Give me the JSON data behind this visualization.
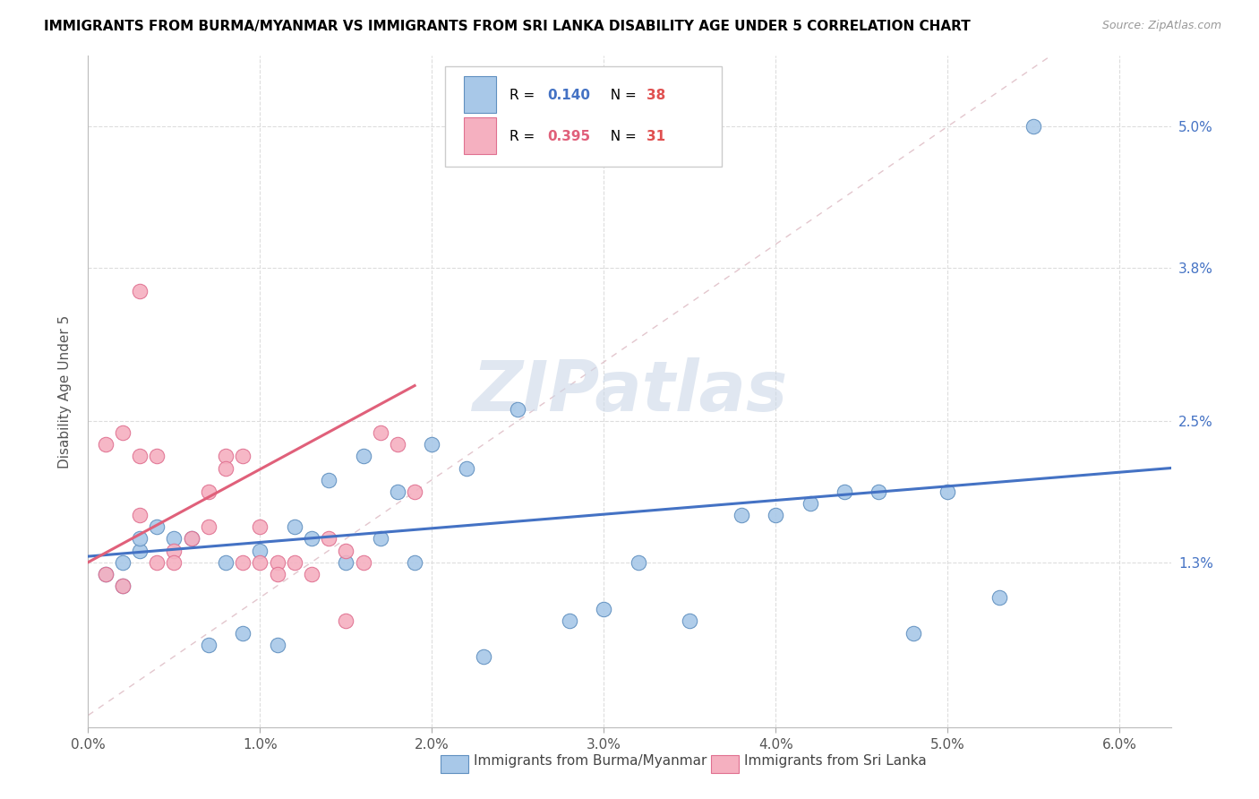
{
  "title": "IMMIGRANTS FROM BURMA/MYANMAR VS IMMIGRANTS FROM SRI LANKA DISABILITY AGE UNDER 5 CORRELATION CHART",
  "source": "Source: ZipAtlas.com",
  "ylabel": "Disability Age Under 5",
  "xlim": [
    0.0,
    0.063
  ],
  "ylim": [
    -0.001,
    0.056
  ],
  "xticks": [
    0.0,
    0.01,
    0.02,
    0.03,
    0.04,
    0.05,
    0.06
  ],
  "xticklabels": [
    "0.0%",
    "1.0%",
    "2.0%",
    "3.0%",
    "4.0%",
    "5.0%",
    "6.0%"
  ],
  "yticks": [
    0.013,
    0.025,
    0.038,
    0.05
  ],
  "yticklabels": [
    "1.3%",
    "2.5%",
    "3.8%",
    "5.0%"
  ],
  "blue_color": "#a8c8e8",
  "pink_color": "#f5b0c0",
  "blue_edge_color": "#6090c0",
  "pink_edge_color": "#e07090",
  "blue_line_color": "#4472c4",
  "pink_line_color": "#e0607a",
  "diag_color": "#e0c0c8",
  "watermark": "ZIPatlas",
  "watermark_color": "#ccd8e8",
  "legend_r1_black": "R = ",
  "legend_r1_val": "0.140",
  "legend_n1_black": "  N = ",
  "legend_n1_val": "38",
  "legend_r2_black": "R = ",
  "legend_r2_val": "0.395",
  "legend_n2_black": "  N = ",
  "legend_n2_val": "31",
  "val_color": "#4472c4",
  "n_color": "#e05050",
  "r2_val_color": "#e0607a",
  "blue_scatter_x": [
    0.025,
    0.055,
    0.001,
    0.002,
    0.002,
    0.003,
    0.003,
    0.004,
    0.005,
    0.008,
    0.01,
    0.012,
    0.014,
    0.016,
    0.017,
    0.018,
    0.02,
    0.022,
    0.028,
    0.03,
    0.032,
    0.035,
    0.038,
    0.04,
    0.042,
    0.044,
    0.046,
    0.048,
    0.05,
    0.053,
    0.006,
    0.007,
    0.009,
    0.011,
    0.013,
    0.015,
    0.019,
    0.023
  ],
  "blue_scatter_y": [
    0.026,
    0.05,
    0.012,
    0.013,
    0.011,
    0.014,
    0.015,
    0.016,
    0.015,
    0.013,
    0.014,
    0.016,
    0.02,
    0.022,
    0.015,
    0.019,
    0.023,
    0.021,
    0.008,
    0.009,
    0.013,
    0.008,
    0.017,
    0.017,
    0.018,
    0.019,
    0.019,
    0.007,
    0.019,
    0.01,
    0.015,
    0.006,
    0.007,
    0.006,
    0.015,
    0.013,
    0.013,
    0.005
  ],
  "pink_scatter_x": [
    0.001,
    0.001,
    0.002,
    0.002,
    0.003,
    0.003,
    0.003,
    0.004,
    0.004,
    0.005,
    0.005,
    0.006,
    0.007,
    0.007,
    0.008,
    0.008,
    0.009,
    0.009,
    0.01,
    0.01,
    0.011,
    0.011,
    0.012,
    0.013,
    0.014,
    0.015,
    0.016,
    0.017,
    0.018,
    0.019,
    0.015
  ],
  "pink_scatter_y": [
    0.012,
    0.023,
    0.011,
    0.024,
    0.022,
    0.036,
    0.017,
    0.022,
    0.013,
    0.014,
    0.013,
    0.015,
    0.016,
    0.019,
    0.022,
    0.021,
    0.022,
    0.013,
    0.013,
    0.016,
    0.013,
    0.012,
    0.013,
    0.012,
    0.015,
    0.014,
    0.013,
    0.024,
    0.023,
    0.019,
    0.008
  ],
  "trend_blue_x0": 0.0,
  "trend_blue_y0": 0.0135,
  "trend_blue_x1": 0.063,
  "trend_blue_y1": 0.021,
  "trend_pink_x0": 0.0,
  "trend_pink_y0": 0.013,
  "trend_pink_x1": 0.019,
  "trend_pink_y1": 0.028,
  "legend_entry1": "Immigrants from Burma/Myanmar",
  "legend_entry2": "Immigrants from Sri Lanka"
}
